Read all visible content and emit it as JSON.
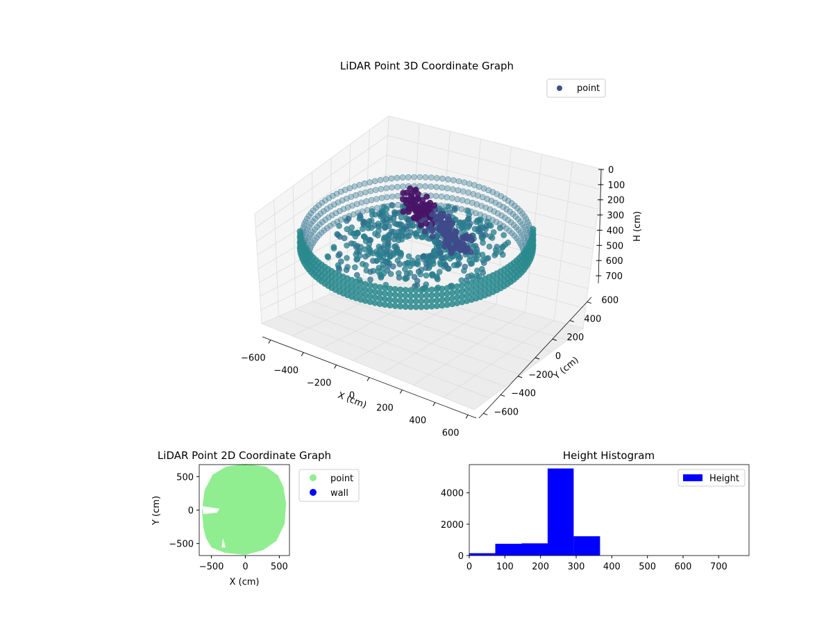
{
  "chart_data": [
    {
      "type": "scatter",
      "projection": "3d",
      "title": "LiDAR Point 3D Coordinate Graph",
      "xlabel": "X (cm)",
      "ylabel": "Y (cm)",
      "zlabel": "H (cm)",
      "x_ticks": [
        "−600",
        "−400",
        "−200",
        "0",
        "200",
        "400",
        "600"
      ],
      "y_ticks": [
        "−600",
        "−400",
        "−200",
        "0",
        "200",
        "400",
        "600"
      ],
      "z_ticks": [
        "0",
        "100",
        "200",
        "300",
        "400",
        "500",
        "600",
        "700"
      ],
      "xlim": [
        -650,
        650
      ],
      "ylim": [
        -650,
        650
      ],
      "zlim": [
        0,
        750
      ],
      "z_inverted": true,
      "legend": {
        "entries": [
          "point"
        ],
        "placement": "top-right"
      },
      "colormap": "viridis",
      "colors": {
        "ring": "#2a8a8e",
        "center": "#3e4a89",
        "peak": "#481467",
        "legend_marker": "#3b528b"
      },
      "grid": true
    },
    {
      "type": "scatter",
      "title": "LiDAR Point 2D Coordinate Graph",
      "xlabel": "X (cm)",
      "ylabel": "Y (cm)",
      "x_ticks": [
        "−500",
        "0",
        "500"
      ],
      "y_ticks": [
        "−500",
        "0",
        "500"
      ],
      "xlim": [
        -680,
        650
      ],
      "ylim": [
        -680,
        680
      ],
      "series": [
        {
          "name": "point",
          "color": "#90ee90"
        },
        {
          "name": "wall",
          "color": "#0000ff"
        }
      ],
      "legend": {
        "entries": [
          "point",
          "wall"
        ],
        "placement": "outside-right"
      }
    },
    {
      "type": "bar",
      "subtype": "histogram",
      "title": "Height Histogram",
      "x_ticks": [
        "0",
        "100",
        "200",
        "300",
        "400",
        "500",
        "600",
        "700"
      ],
      "y_ticks": [
        "0",
        "2000",
        "4000"
      ],
      "xlim": [
        0,
        785
      ],
      "ylim": [
        0,
        5800
      ],
      "bins": [
        [
          0,
          73
        ],
        [
          73,
          147
        ],
        [
          147,
          220
        ],
        [
          220,
          293
        ],
        [
          293,
          367
        ]
      ],
      "values": [
        150,
        750,
        780,
        5550,
        1230
      ],
      "legend": {
        "entries": [
          "Height"
        ],
        "placement": "top-right"
      },
      "color": "#0000ff",
      "grid": false
    }
  ]
}
